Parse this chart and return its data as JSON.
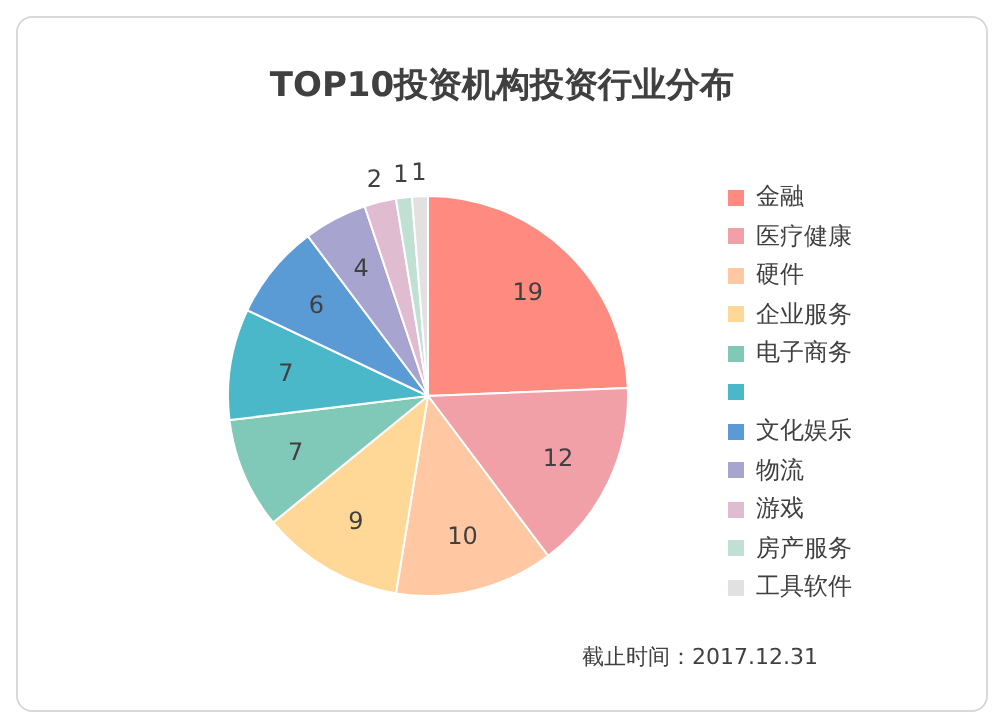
{
  "chart_data": {
    "type": "pie",
    "title": "TOP10投资机构投资行业分布",
    "categories": [
      "金融",
      "医疗健康",
      "硬件",
      "企业服务",
      "电子商务",
      null,
      "文化娱乐",
      "物流",
      "游戏",
      "房产服务",
      "工具软件"
    ],
    "values": [
      19,
      12,
      10,
      9,
      7,
      7,
      6,
      4,
      2,
      1,
      1
    ],
    "colors": [
      "#ff8a80",
      "#f0a0a6",
      "#ffc8a2",
      "#ffd898",
      "#80c8b8",
      "#4ab8c8",
      "#5b9bd5",
      "#a8a4d0",
      "#e0bcd0",
      "#c0e0d4",
      "#e2e0e0"
    ],
    "data_labels": true,
    "legend": "right",
    "annotations": [
      "截止时间：2017.12.31"
    ]
  }
}
